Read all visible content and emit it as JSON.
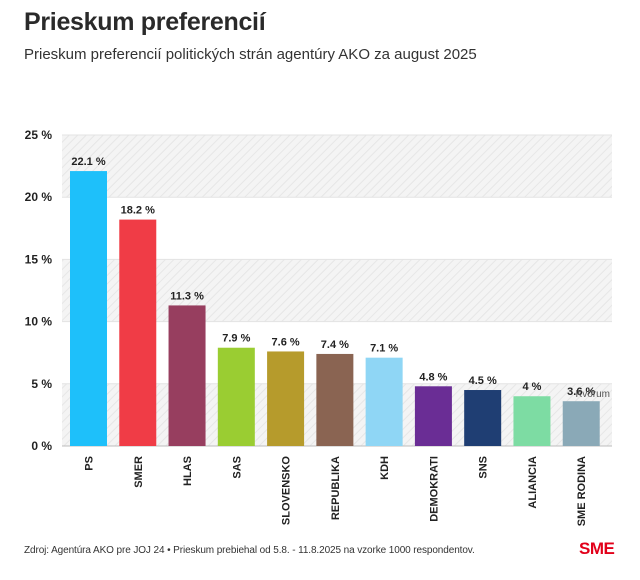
{
  "header": {
    "title": "Prieskum preferencií",
    "subtitle": "Prieskum preferencií politických strán agentúry AKO za august 2025"
  },
  "footer": {
    "source": "Zdroj: Agentúra AKO pre JOJ 24 • Prieskum prebiehal od 5.8. - 11.8.2025 na vzorke 1000 respondentov.",
    "logo": "SME"
  },
  "chart_data": {
    "type": "bar",
    "categories": [
      "PS",
      "SMER",
      "HLAS",
      "SAS",
      "SLOVENSKO",
      "REPUBLIKA",
      "KDH",
      "DEMOKRATI",
      "SNS",
      "ALIANCIA",
      "SME RODINA"
    ],
    "values": [
      22.1,
      18.2,
      11.3,
      7.9,
      7.6,
      7.4,
      7.1,
      4.8,
      4.5,
      4,
      3.6
    ],
    "data_labels": [
      "22.1 %",
      "18.2 %",
      "11.3 %",
      "7.9 %",
      "7.6 %",
      "7.4 %",
      "7.1 %",
      "4.8 %",
      "4.5 %",
      "4 %",
      "3.6 %"
    ],
    "colors": [
      "#1ec0fa",
      "#f03c46",
      "#973e5f",
      "#9acd32",
      "#b69b2c",
      "#8a6452",
      "#8fd6f5",
      "#6a2d95",
      "#1f3e73",
      "#7ddca3",
      "#8aa9b7"
    ],
    "ylim": [
      0,
      25
    ],
    "yticks": [
      0,
      5,
      10,
      15,
      20,
      25
    ],
    "ytick_labels": [
      "0 %",
      "5 %",
      "10 %",
      "15 %",
      "20 %",
      "25 %"
    ],
    "grid": true,
    "annotations": [
      {
        "text": "Kvórum",
        "value": 5
      }
    ]
  }
}
